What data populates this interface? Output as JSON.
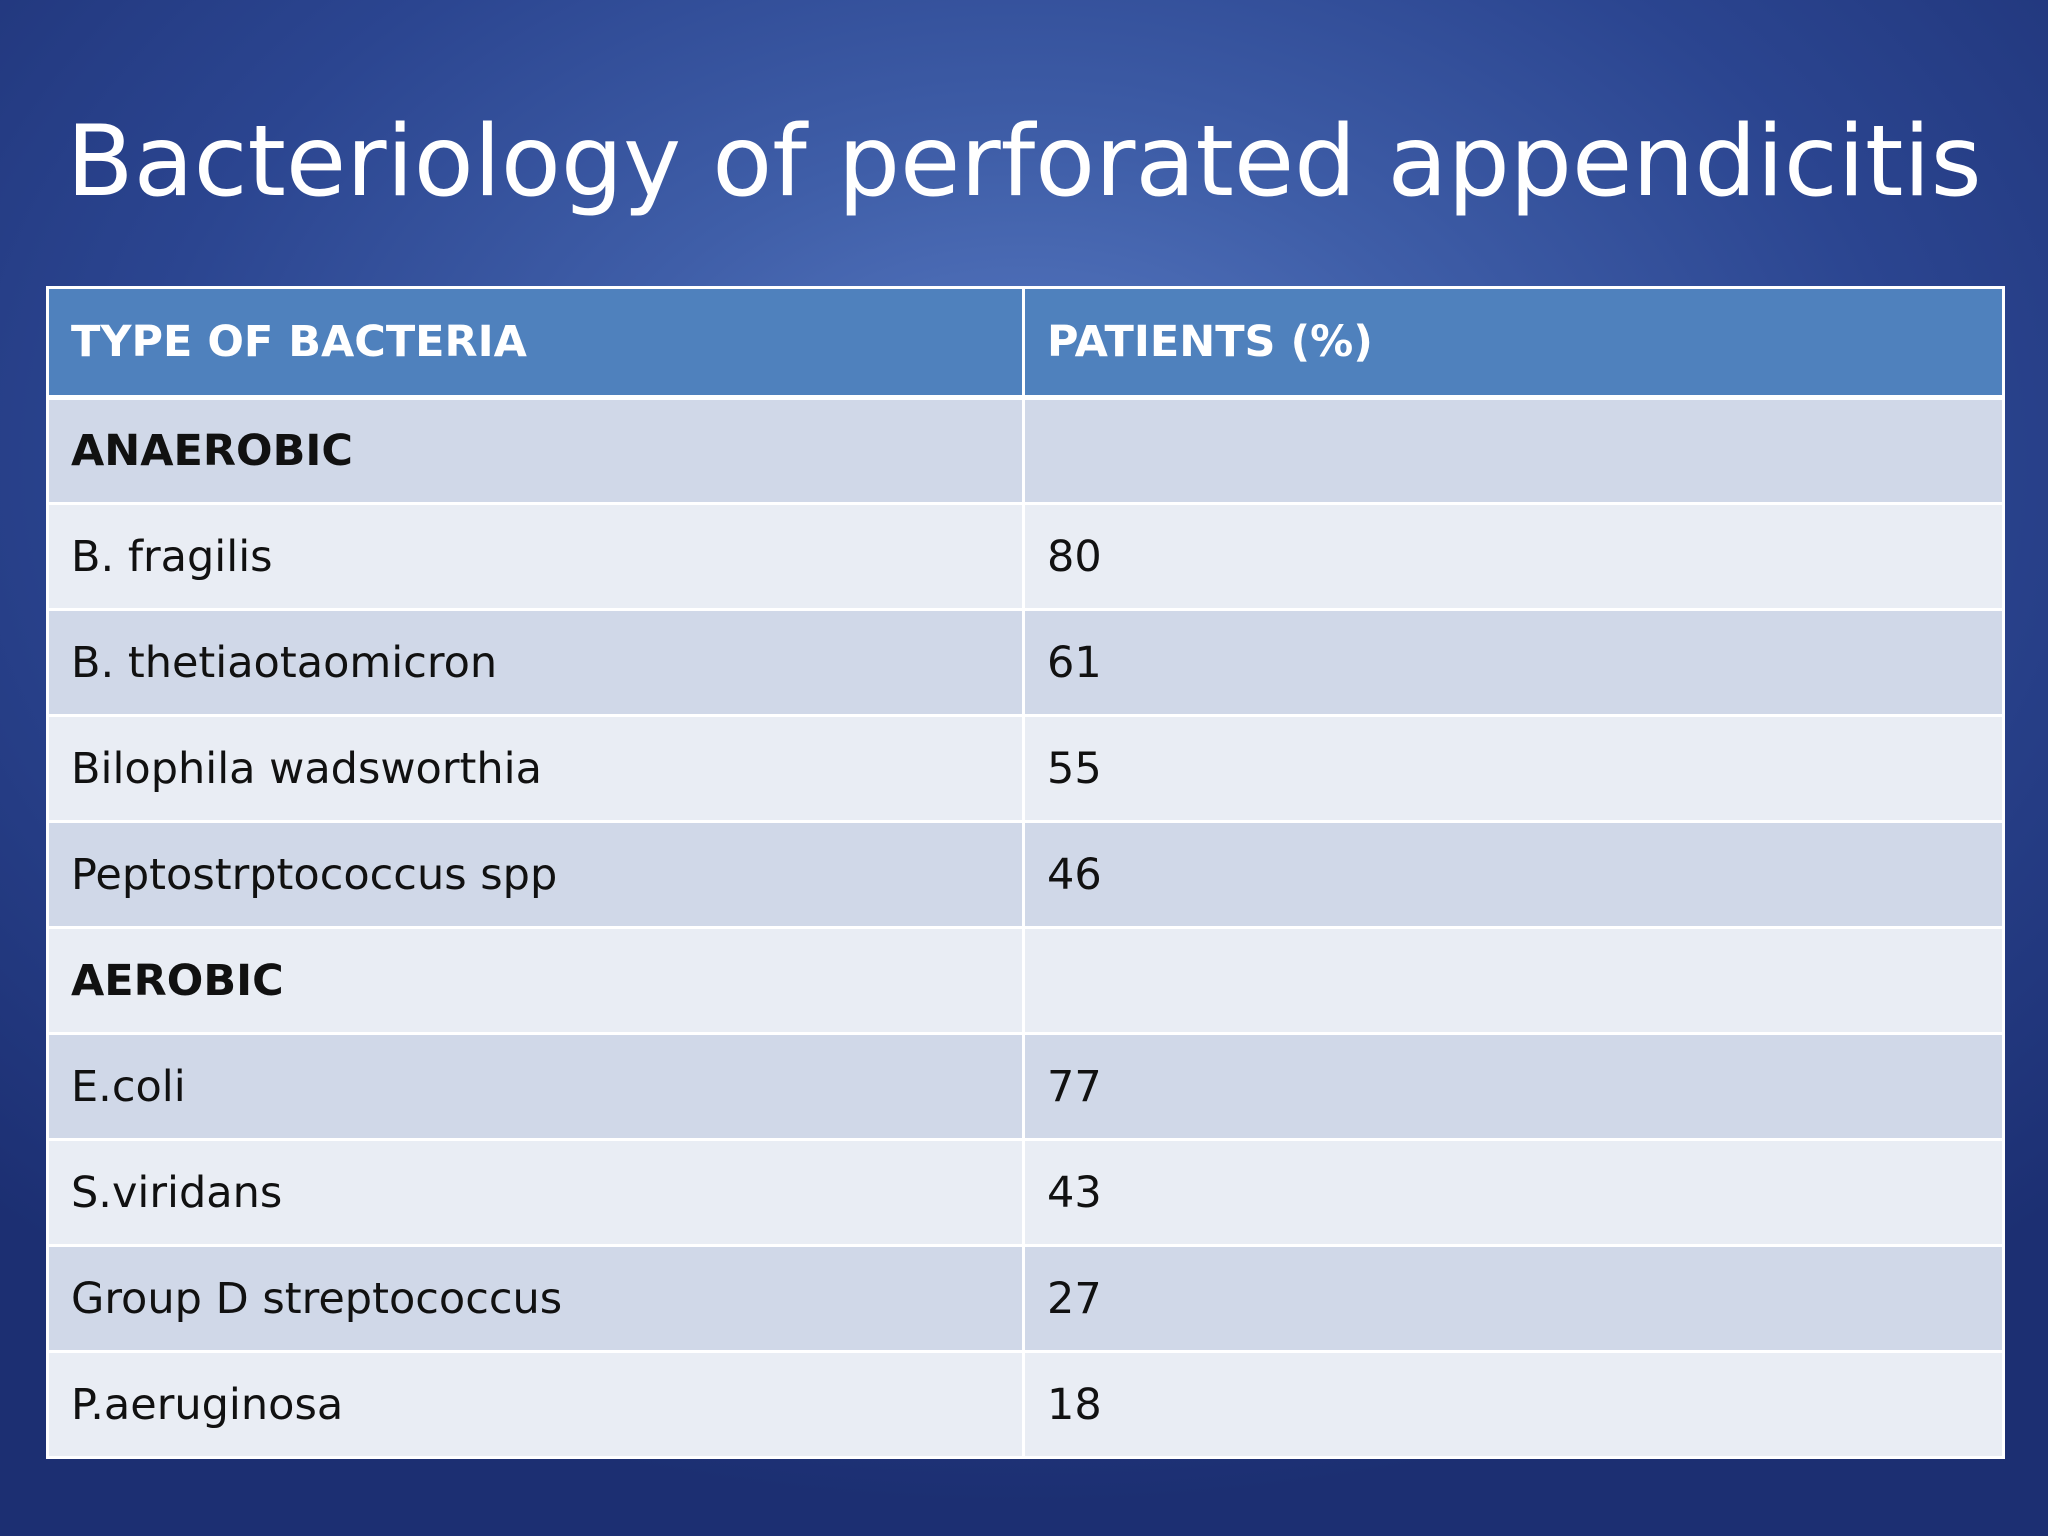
{
  "slide": {
    "title": "Bacteriology of perforated appendicitis"
  },
  "table": {
    "headers": [
      "TYPE OF BACTERIA",
      "PATIENTS (%)"
    ],
    "rows": [
      {
        "cells": [
          "ANAEROBIC",
          ""
        ],
        "group": true
      },
      {
        "cells": [
          "B. fragilis",
          "80"
        ],
        "group": false
      },
      {
        "cells": [
          "B. thetiaotaomicron",
          "61"
        ],
        "group": false
      },
      {
        "cells": [
          "Bilophila wadsworthia",
          "55"
        ],
        "group": false
      },
      {
        "cells": [
          "Peptostrptococcus spp",
          "46"
        ],
        "group": false
      },
      {
        "cells": [
          "AEROBIC",
          ""
        ],
        "group": true
      },
      {
        "cells": [
          "E.coli",
          "77"
        ],
        "group": false
      },
      {
        "cells": [
          "S.viridans",
          "43"
        ],
        "group": false
      },
      {
        "cells": [
          "Group D streptococcus",
          "27"
        ],
        "group": false
      },
      {
        "cells": [
          "P.aeruginosa",
          "18"
        ],
        "group": false
      }
    ]
  },
  "colors": {
    "background": "#2b4590",
    "header_fill": "#4f81bd",
    "row_band_dark": "#d0d8e8",
    "row_band_light": "#e9edf4",
    "title_text": "#ffffff"
  }
}
